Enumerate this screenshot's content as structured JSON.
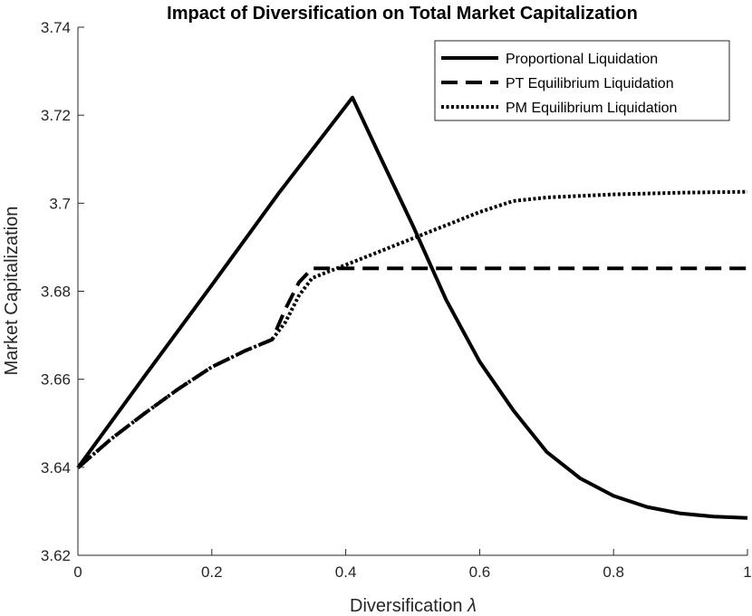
{
  "chart_data": {
    "type": "line",
    "title": "Impact of Diversification on Total Market Capitalization",
    "xlabel": "Diversification",
    "xlabel_symbol": "λ",
    "ylabel": "Market Capitalization",
    "xlim": [
      0,
      1
    ],
    "ylim": [
      3.62,
      3.74
    ],
    "x_ticks": [
      0,
      0.2,
      0.4,
      0.6,
      0.8,
      1
    ],
    "x_tick_labels": [
      "0",
      "0.2",
      "0.4",
      "0.6",
      "0.8",
      "1"
    ],
    "y_ticks": [
      3.62,
      3.64,
      3.66,
      3.68,
      3.7,
      3.72,
      3.74
    ],
    "y_tick_labels": [
      "3.62",
      "3.64",
      "3.66",
      "3.68",
      "3.7",
      "3.72",
      "3.74"
    ],
    "grid": false,
    "legend_position": "top-right",
    "series": [
      {
        "name": "Proportional Liquidation",
        "style": "solid",
        "color": "#000000",
        "x": [
          0,
          0.1,
          0.2,
          0.3,
          0.41,
          0.45,
          0.5,
          0.55,
          0.6,
          0.65,
          0.7,
          0.75,
          0.8,
          0.85,
          0.9,
          0.95,
          1.0
        ],
        "y": [
          3.6399,
          3.6608,
          3.6814,
          3.7023,
          3.724,
          3.711,
          3.695,
          3.678,
          3.664,
          3.653,
          3.6435,
          3.6375,
          3.6335,
          3.631,
          3.6295,
          3.6288,
          3.6285
        ]
      },
      {
        "name": "PT Equilibrium Liquidation",
        "style": "dashed",
        "color": "#000000",
        "x": [
          0,
          0.05,
          0.1,
          0.15,
          0.2,
          0.25,
          0.29,
          0.31,
          0.33,
          0.35,
          0.4,
          0.5,
          0.6,
          0.7,
          0.8,
          0.9,
          1.0
        ],
        "y": [
          3.6399,
          3.6465,
          3.6523,
          3.6578,
          3.6628,
          3.6665,
          3.669,
          3.676,
          3.682,
          3.6852,
          3.6852,
          3.6852,
          3.6852,
          3.6852,
          3.6852,
          3.6852,
          3.6852
        ]
      },
      {
        "name": "PM Equilibrium Liquidation",
        "style": "dotted",
        "color": "#000000",
        "x": [
          0,
          0.05,
          0.1,
          0.15,
          0.2,
          0.25,
          0.29,
          0.31,
          0.33,
          0.35,
          0.4,
          0.5,
          0.6,
          0.65,
          0.7,
          0.8,
          0.9,
          1.0
        ],
        "y": [
          3.6399,
          3.6465,
          3.6523,
          3.6578,
          3.6628,
          3.6665,
          3.669,
          3.673,
          3.679,
          3.683,
          3.686,
          3.692,
          3.698,
          3.7005,
          3.7013,
          3.702,
          3.7024,
          3.7026
        ]
      }
    ]
  }
}
